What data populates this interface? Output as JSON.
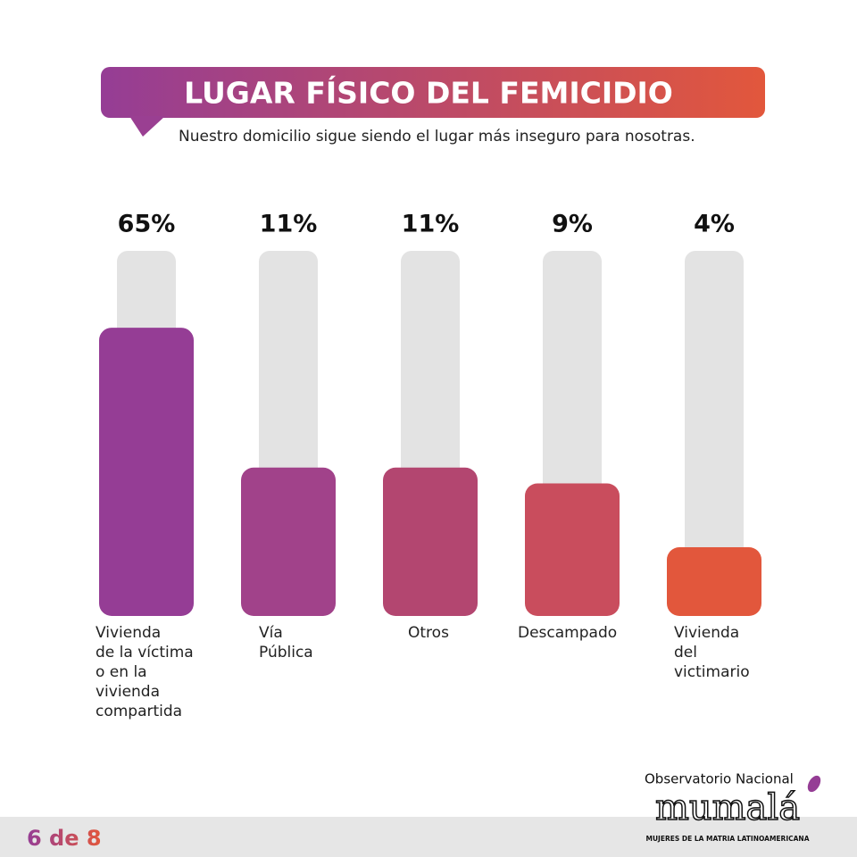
{
  "chart_data": {
    "type": "bar",
    "title": "LUGAR FÍSICO DEL FEMICIDIO",
    "subtitle": "Nuestro domicilio sigue siendo el lugar más inseguro para nosotras.",
    "categories": [
      "Vivienda\nde la víctima\no en la\nvivienda\ncompartida",
      "Vía\nPública",
      "Otros",
      "Descampado",
      "Vivienda\ndel\nvictimario"
    ],
    "values": [
      65,
      11,
      11,
      9,
      4
    ],
    "value_labels": [
      "65%",
      "11%",
      "11%",
      "9%",
      "4%"
    ],
    "colors": [
      "#953d95",
      "#a1428a",
      "#b34670",
      "#c94d5d",
      "#e2573c"
    ]
  },
  "footer": {
    "page": "6 de 8",
    "logo_top": "Observatorio Nacional",
    "logo_name": "mumalá",
    "logo_sub": "MUJERES DE LA MATRIA LATINOAMERICANA"
  }
}
